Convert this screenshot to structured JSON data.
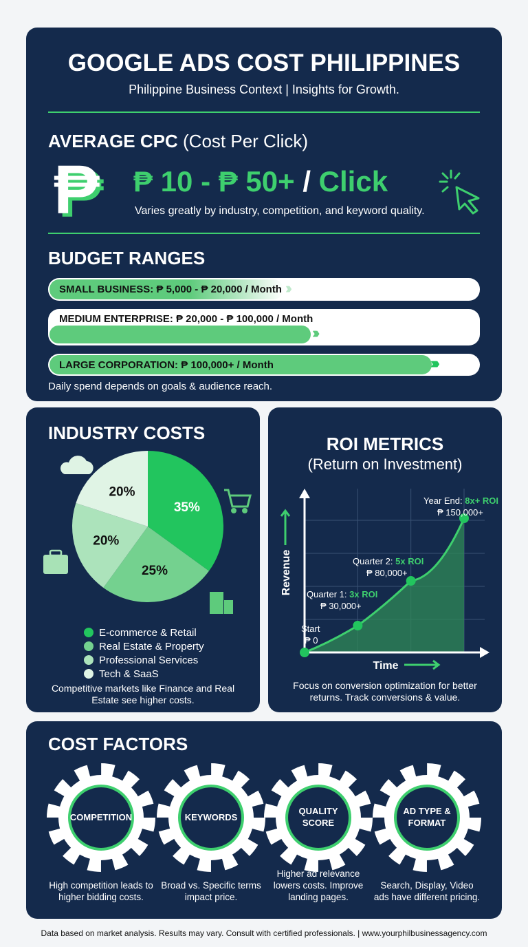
{
  "header": {
    "title": "GOOGLE ADS COST PHILIPPINES",
    "subtitle": "Philippine Business Context | Insights for Growth."
  },
  "cpc": {
    "heading_bold": "AVERAGE CPC",
    "heading_light": "(Cost Per Click)",
    "range": "₱ 10 - ₱ 50+",
    "separator": " / ",
    "unit": "Click",
    "note": "Varies greatly by industry, competition, and keyword quality.",
    "icons": [
      "peso-sign-icon",
      "cursor-click-icon"
    ]
  },
  "budget": {
    "heading": "BUDGET RANGES",
    "items": [
      {
        "label": "SMALL BUSINESS: ₱ 5,000 - ₱ 20,000 / Month",
        "level": 0.55
      },
      {
        "label": "MEDIUM ENTERPRISE: ₱ 20,000 - ₱ 100,000 / Month",
        "level": 0.7
      },
      {
        "label": "LARGE CORPORATION: ₱ 100,000+ / Month",
        "level": 1.0
      }
    ],
    "note": "Daily spend depends on goals & audience reach."
  },
  "industry": {
    "heading": "INDUSTRY COSTS",
    "note": "Competitive markets like Finance and Real Estate see higher costs.",
    "icons": [
      "cloud-icon",
      "cart-icon",
      "briefcase-icon",
      "building-icon"
    ]
  },
  "roi": {
    "heading": "ROI METRICS",
    "subheading": "(Return on Investment)",
    "note": "Focus on conversion optimization for better returns. Track conversions & value."
  },
  "factors": {
    "heading": "COST FACTORS",
    "items": [
      {
        "label": "COMPETITION",
        "desc": "High competition leads to higher bidding costs."
      },
      {
        "label": "KEYWORDS",
        "desc": "Broad vs. Specific terms impact price."
      },
      {
        "label": "QUALITY SCORE",
        "desc": "Higher ad relevance lowers costs. Improve landing pages."
      },
      {
        "label": "AD TYPE & FORMAT",
        "desc": "Search, Display, Video ads have different pricing."
      }
    ]
  },
  "footer": "Data based on market analysis. Results may vary. Consult with certified professionals. | www.yourphilbusinessagency.com",
  "colors": {
    "navy": "#142a4c",
    "green": "#3ecf6e",
    "bar_green": "#5ecb7c"
  },
  "chart_data": [
    {
      "type": "pie",
      "labels": [
        "E-commerce & Retail",
        "Real Estate & Property",
        "Professional Services",
        "Tech & SaaS"
      ],
      "values": [
        35,
        25,
        20,
        20
      ],
      "value_labels": [
        "35%",
        "25%",
        "20%",
        "20%"
      ],
      "colors": [
        "#22c55e",
        "#74d18f",
        "#ace3bb",
        "#e0f4e5"
      ],
      "legend": "bottom"
    },
    {
      "type": "area",
      "xlabel": "Time",
      "ylabel": "Revenue",
      "grid": true,
      "points": [
        {
          "x": 0,
          "y": 0,
          "label": "Start",
          "value": "₱ 0",
          "roi": ""
        },
        {
          "x": 1,
          "y": 30000,
          "label": "Quarter 1: ",
          "value": "₱ 30,000+",
          "roi": "3x ROI"
        },
        {
          "x": 2,
          "y": 80000,
          "label": "Quarter 2: ",
          "value": "₱ 80,000+",
          "roi": "5x ROI"
        },
        {
          "x": 3,
          "y": 150000,
          "label": "Year End: ",
          "value": "₱ 150,000+",
          "roi": "8x+ ROI"
        }
      ]
    }
  ]
}
